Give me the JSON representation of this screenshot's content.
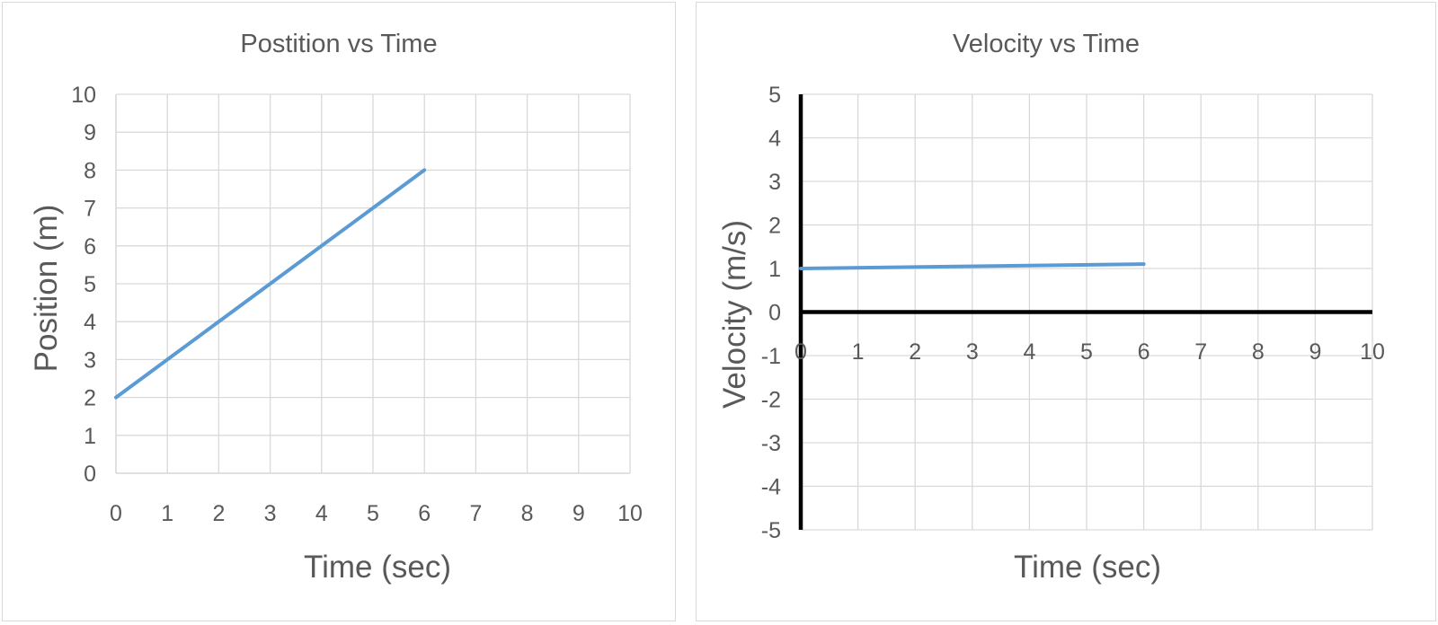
{
  "chart_data": [
    {
      "type": "line",
      "title": "Postition vs Time",
      "xlabel": "Time (sec)",
      "ylabel": "Position (m)",
      "xlim": [
        0,
        10
      ],
      "ylim": [
        0,
        10
      ],
      "xticks": [
        "0",
        "1",
        "2",
        "3",
        "4",
        "5",
        "6",
        "7",
        "8",
        "9",
        "10"
      ],
      "yticks": [
        "0",
        "1",
        "2",
        "3",
        "4",
        "5",
        "6",
        "7",
        "8",
        "9",
        "10"
      ],
      "grid": true,
      "series": [
        {
          "x": [
            0,
            6
          ],
          "y": [
            2,
            8
          ],
          "color": "#5b9bd5"
        }
      ]
    },
    {
      "type": "line",
      "title": "Velocity vs Time",
      "xlabel": "Time (sec)",
      "ylabel": "Velocity (m/s)",
      "xlim": [
        0,
        10
      ],
      "ylim": [
        -5,
        5
      ],
      "xticks": [
        "0",
        "1",
        "2",
        "3",
        "4",
        "5",
        "6",
        "7",
        "8",
        "9",
        "10"
      ],
      "yticks": [
        "-5",
        "-4",
        "-3",
        "-2",
        "-1",
        "0",
        "1",
        "2",
        "3",
        "4",
        "5"
      ],
      "grid": true,
      "bold_axes": true,
      "series": [
        {
          "x": [
            0,
            6
          ],
          "y": [
            1.0,
            1.1
          ],
          "color": "#5b9bd5"
        }
      ]
    }
  ]
}
